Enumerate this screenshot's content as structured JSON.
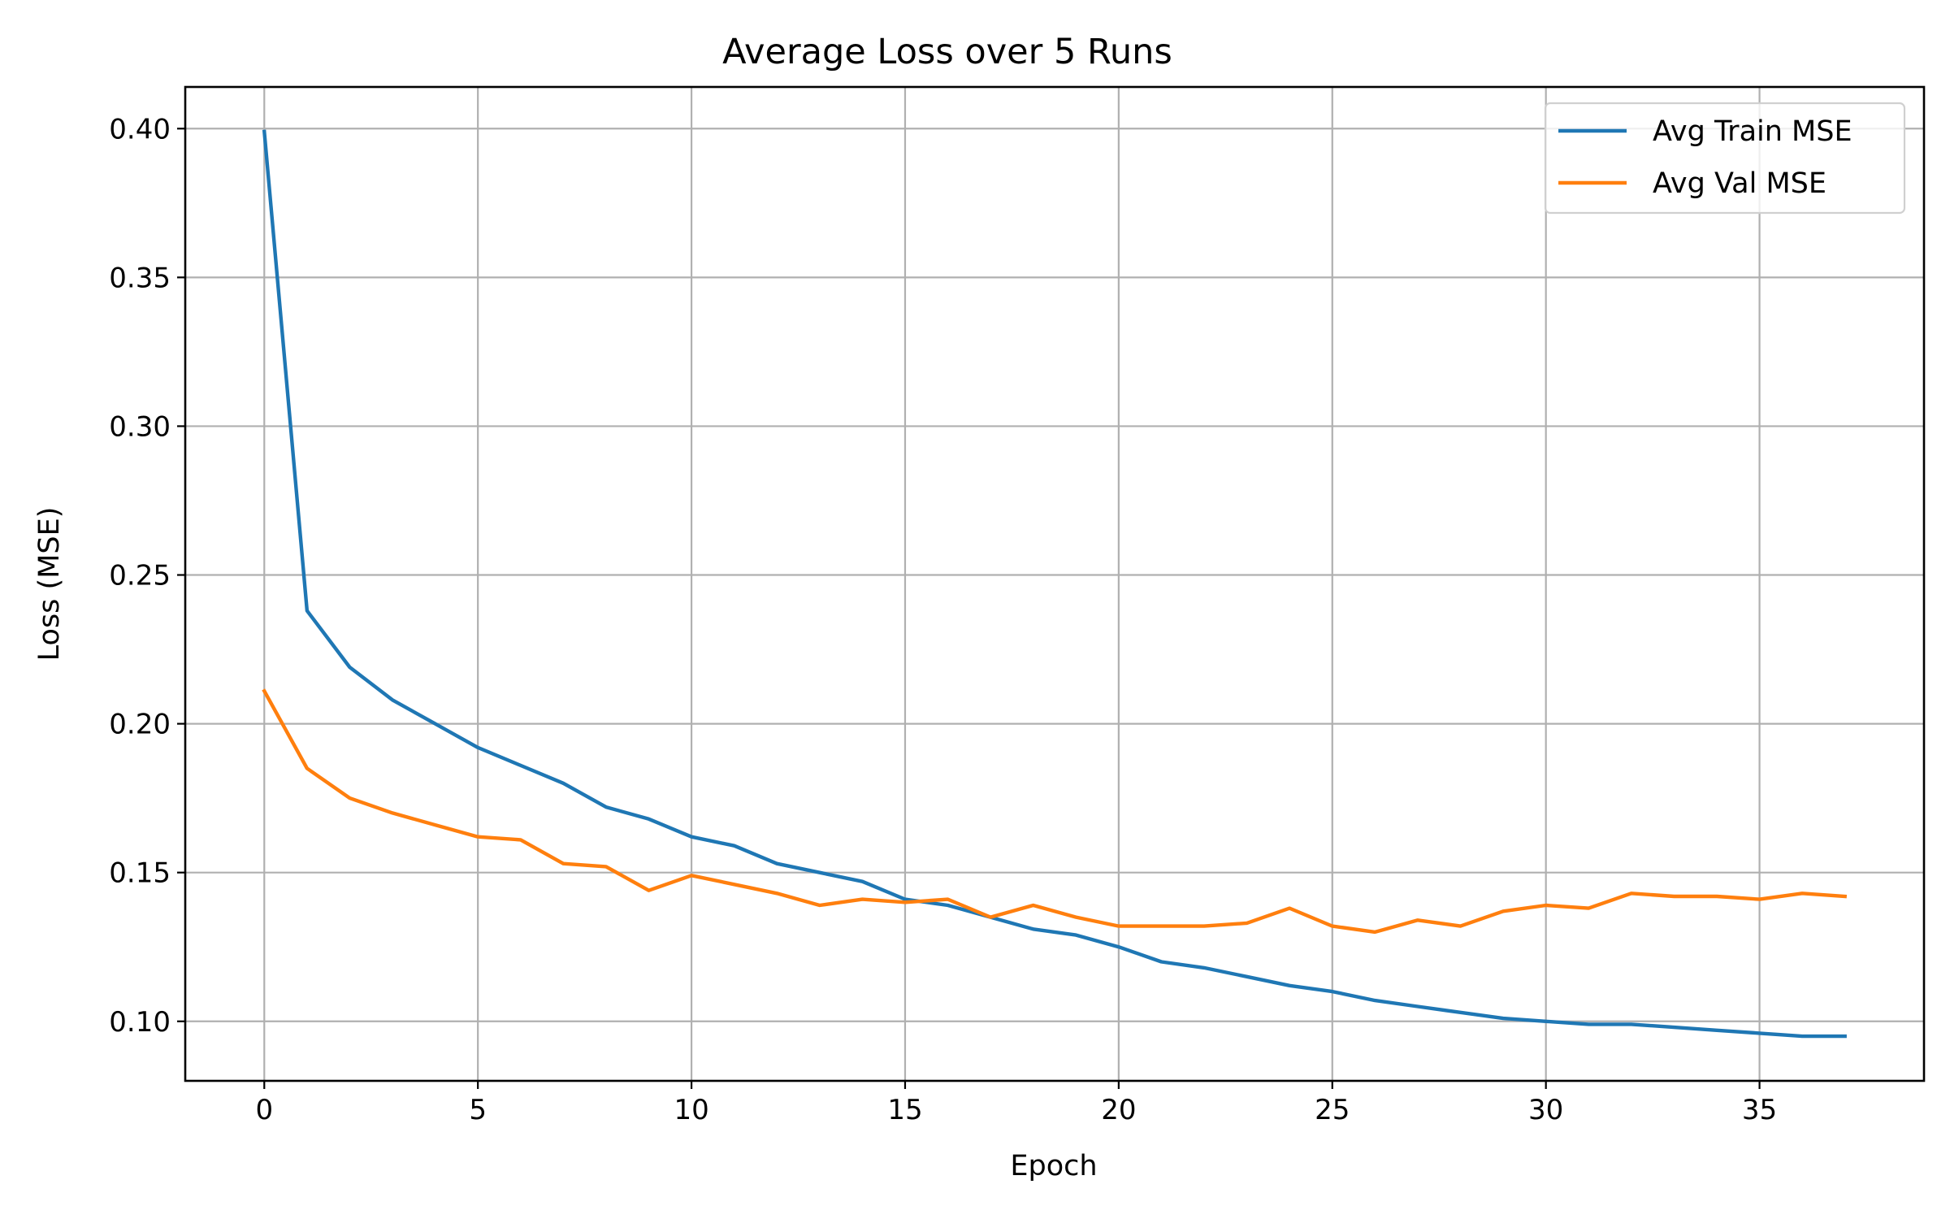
{
  "chart_data": {
    "type": "line",
    "title": "Average Loss over 5 Runs",
    "xlabel": "Epoch",
    "ylabel": "Loss (MSE)",
    "xlim": [
      -1.85,
      38.85
    ],
    "ylim": [
      0.08,
      0.414
    ],
    "xticks": [
      0,
      5,
      10,
      15,
      20,
      25,
      30,
      35
    ],
    "xtick_labels": [
      "0",
      "5",
      "10",
      "15",
      "20",
      "25",
      "30",
      "35"
    ],
    "yticks": [
      0.1,
      0.15,
      0.2,
      0.25,
      0.3,
      0.35,
      0.4
    ],
    "ytick_labels": [
      "0.10",
      "0.15",
      "0.20",
      "0.25",
      "0.30",
      "0.35",
      "0.40"
    ],
    "grid": true,
    "legend_position": "top-right",
    "x": [
      0,
      1,
      2,
      3,
      4,
      5,
      6,
      7,
      8,
      9,
      10,
      11,
      12,
      13,
      14,
      15,
      16,
      17,
      18,
      19,
      20,
      21,
      22,
      23,
      24,
      25,
      26,
      27,
      28,
      29,
      30,
      31,
      32,
      33,
      34,
      35,
      36,
      37
    ],
    "series": [
      {
        "name": "Avg Train MSE",
        "color": "#1f77b4",
        "values": [
          0.399,
          0.238,
          0.219,
          0.208,
          0.2,
          0.192,
          0.186,
          0.18,
          0.172,
          0.168,
          0.162,
          0.159,
          0.153,
          0.15,
          0.147,
          0.141,
          0.139,
          0.135,
          0.131,
          0.129,
          0.125,
          0.12,
          0.118,
          0.115,
          0.112,
          0.11,
          0.107,
          0.105,
          0.103,
          0.101,
          0.1,
          0.099,
          0.099,
          0.098,
          0.097,
          0.096,
          0.095,
          0.095
        ]
      },
      {
        "name": "Avg Val MSE",
        "color": "#ff7f0e",
        "values": [
          0.211,
          0.185,
          0.175,
          0.17,
          0.166,
          0.162,
          0.161,
          0.153,
          0.152,
          0.144,
          0.149,
          0.146,
          0.143,
          0.139,
          0.141,
          0.14,
          0.141,
          0.135,
          0.139,
          0.135,
          0.132,
          0.132,
          0.132,
          0.133,
          0.138,
          0.132,
          0.13,
          0.134,
          0.132,
          0.137,
          0.139,
          0.138,
          0.143,
          0.142,
          0.142,
          0.141,
          0.143,
          0.142
        ]
      }
    ]
  }
}
